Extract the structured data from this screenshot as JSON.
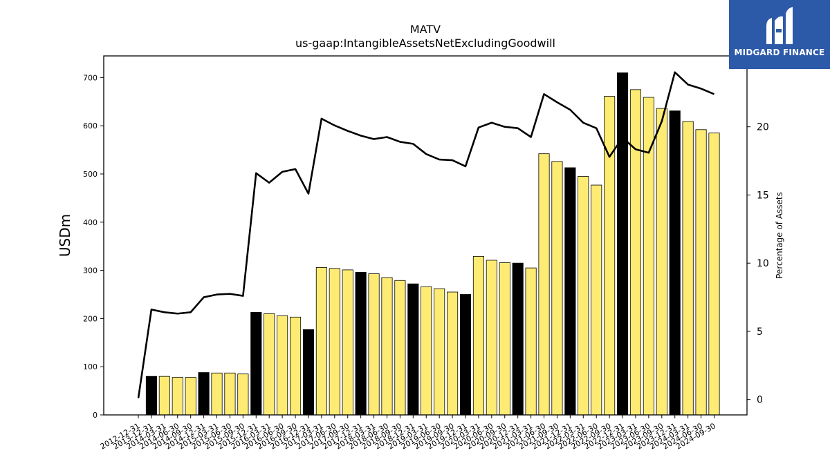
{
  "brand": {
    "name": "MIDGARD FINANCE",
    "bg_color": "#2c5aa8"
  },
  "chart_data": {
    "type": "bar+line",
    "title": "MATV",
    "subtitle": "us-gaap:IntangibleAssetsNetExcludingGoodwill",
    "ylabel_left": "USDm",
    "ylabel_right": "Percentage of Assets",
    "ylim_left": [
      0,
      745
    ],
    "ylim_right": [
      -1.13,
      25.2
    ],
    "yticks_left": [
      0,
      100,
      200,
      300,
      400,
      500,
      600,
      700
    ],
    "yticks_right": [
      0,
      5,
      10,
      15,
      20
    ],
    "grid": false,
    "colors": {
      "annual_bar": "#000000",
      "quarter_bar": "#fdeb74",
      "line": "#000000"
    },
    "categories": [
      "2012-12-31",
      "2013-12-31",
      "2014-03-31",
      "2014-06-30",
      "2014-09-30",
      "2014-12-31",
      "2015-03-31",
      "2015-06-30",
      "2015-09-30",
      "2015-12-31",
      "2016-03-31",
      "2016-06-30",
      "2016-09-30",
      "2016-12-31",
      "2017-03-31",
      "2017-06-30",
      "2017-09-30",
      "2017-12-31",
      "2018-03-31",
      "2018-06-30",
      "2018-09-30",
      "2018-12-31",
      "2019-03-31",
      "2019-06-30",
      "2019-09-30",
      "2019-12-31",
      "2020-03-31",
      "2020-06-30",
      "2020-09-30",
      "2020-12-31",
      "2021-03-31",
      "2021-06-30",
      "2021-09-30",
      "2021-12-31",
      "2022-03-31",
      "2022-06-30",
      "2022-09-30",
      "2022-12-31",
      "2023-03-31",
      "2023-06-30",
      "2023-09-30",
      "2023-12-31",
      "2024-03-31",
      "2024-06-30",
      "2024-09-30"
    ],
    "bar_values": [
      null,
      80,
      80,
      78,
      78,
      88,
      87,
      87,
      85,
      213,
      210,
      206,
      203,
      177,
      306,
      304,
      301,
      296,
      293,
      285,
      279,
      272,
      266,
      262,
      255,
      250,
      329,
      321,
      316,
      315,
      305,
      542,
      526,
      513,
      495,
      477,
      661,
      710,
      675,
      659,
      636,
      631,
      609,
      592,
      585
    ],
    "bar_kind": [
      "none",
      "annual",
      "quarter",
      "quarter",
      "quarter",
      "annual",
      "quarter",
      "quarter",
      "quarter",
      "annual",
      "quarter",
      "quarter",
      "quarter",
      "annual",
      "quarter",
      "quarter",
      "quarter",
      "annual",
      "quarter",
      "quarter",
      "quarter",
      "annual",
      "quarter",
      "quarter",
      "quarter",
      "annual",
      "quarter",
      "quarter",
      "quarter",
      "annual",
      "quarter",
      "quarter",
      "quarter",
      "annual",
      "quarter",
      "quarter",
      "quarter",
      "annual",
      "quarter",
      "quarter",
      "quarter",
      "annual",
      "quarter",
      "quarter",
      "quarter"
    ],
    "line_values": [
      0.1,
      6.6,
      6.4,
      6.3,
      6.4,
      7.5,
      7.7,
      7.75,
      7.6,
      16.6,
      15.9,
      16.7,
      16.9,
      15.1,
      20.6,
      20.1,
      19.7,
      19.35,
      19.1,
      19.25,
      18.9,
      18.75,
      18.0,
      17.6,
      17.55,
      17.1,
      19.95,
      20.3,
      20.0,
      19.9,
      19.25,
      22.4,
      21.8,
      21.25,
      20.3,
      19.9,
      17.8,
      19.2,
      18.35,
      18.1,
      20.4,
      24.0,
      23.1,
      22.8,
      22.4
    ]
  }
}
